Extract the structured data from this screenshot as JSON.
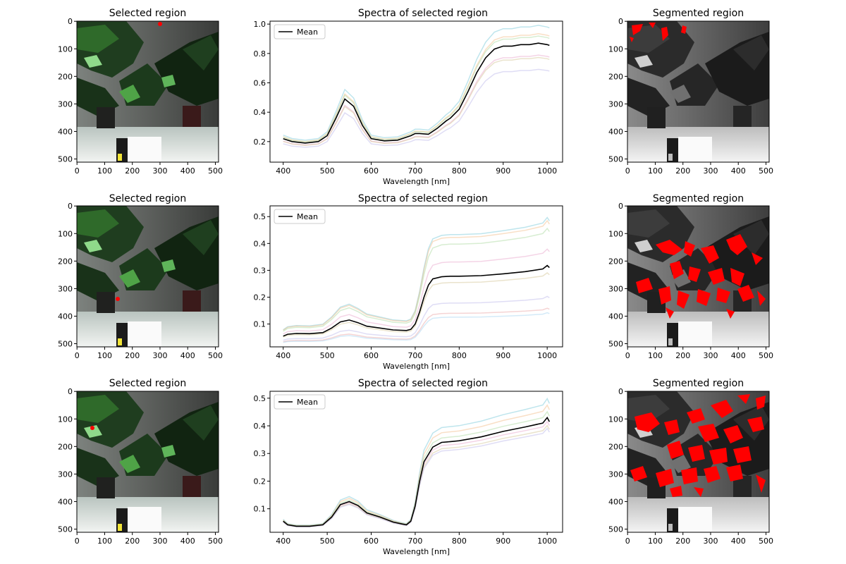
{
  "figure": {
    "image_title": "Selected region",
    "spectra_title": "Spectra of selected region",
    "segmented_title": "Segmented region",
    "xlabel": "Wavelength [nm]",
    "legend_label": "Mean",
    "image_ticks": [
      "0",
      "100",
      "200",
      "300",
      "400",
      "500"
    ]
  },
  "colors": {
    "mean": "#000000",
    "overlay": "#ff0000",
    "marker": "#ff0000",
    "faint_series": [
      "#6fc6d6",
      "#f2b880",
      "#a6d79a",
      "#e6a0c8",
      "#d1c28f",
      "#b7b4e8",
      "#e8a0a0",
      "#a0d0f0",
      "#d9d07a",
      "#c8a8e0"
    ]
  },
  "chart_data": [
    {
      "type": "line",
      "title": "Spectra of selected region",
      "xlabel": "Wavelength [nm]",
      "xlim": [
        370,
        1035
      ],
      "ylim": [
        0.06,
        1.02
      ],
      "xticks": [
        400,
        500,
        600,
        700,
        800,
        900,
        1000
      ],
      "yticks": [
        0.2,
        0.4,
        0.6,
        0.8,
        1.0
      ],
      "ytick_labels": [
        "0.2",
        "0.4",
        "0.6",
        "0.8",
        "1.0"
      ],
      "legend": "upper left",
      "x": [
        400,
        420,
        450,
        480,
        500,
        520,
        540,
        560,
        580,
        600,
        630,
        660,
        690,
        700,
        710,
        730,
        750,
        770,
        780,
        800,
        820,
        840,
        860,
        880,
        900,
        920,
        940,
        960,
        980,
        1000,
        1005
      ],
      "mean": [
        0.22,
        0.2,
        0.19,
        0.2,
        0.24,
        0.36,
        0.49,
        0.44,
        0.31,
        0.22,
        0.205,
        0.21,
        0.24,
        0.255,
        0.255,
        0.25,
        0.29,
        0.34,
        0.36,
        0.42,
        0.54,
        0.67,
        0.77,
        0.83,
        0.85,
        0.85,
        0.86,
        0.86,
        0.87,
        0.86,
        0.855
      ],
      "band_scales": [
        1.13,
        1.08,
        1.02,
        0.95,
        0.9,
        0.86
      ],
      "band_offsets": [
        0.02,
        0.0,
        0.04,
        -0.05,
        -0.02,
        -0.08
      ]
    },
    {
      "type": "line",
      "title": "Spectra of selected region",
      "xlabel": "Wavelength [nm]",
      "xlim": [
        370,
        1035
      ],
      "ylim": [
        0.015,
        0.54
      ],
      "xticks": [
        400,
        500,
        600,
        700,
        800,
        900,
        1000
      ],
      "yticks": [
        0.1,
        0.2,
        0.3,
        0.4,
        0.5
      ],
      "ytick_labels": [
        "0.1",
        "0.2",
        "0.3",
        "0.4",
        "0.5"
      ],
      "legend": "upper left",
      "x": [
        400,
        410,
        430,
        460,
        490,
        510,
        530,
        550,
        570,
        590,
        620,
        650,
        680,
        690,
        700,
        710,
        720,
        730,
        740,
        760,
        780,
        800,
        850,
        900,
        950,
        990,
        1000,
        1005
      ],
      "mean": [
        0.055,
        0.062,
        0.065,
        0.064,
        0.068,
        0.085,
        0.108,
        0.115,
        0.105,
        0.092,
        0.085,
        0.078,
        0.076,
        0.08,
        0.1,
        0.145,
        0.2,
        0.245,
        0.268,
        0.276,
        0.278,
        0.278,
        0.28,
        0.287,
        0.295,
        0.305,
        0.318,
        0.31
      ],
      "band_scales": [
        1.6,
        1.55,
        1.45,
        1.2,
        0.9,
        0.6,
        0.45,
        0.4
      ],
      "band_offsets": [
        -0.01,
        0.0,
        0.005,
        0.002,
        0.01,
        0.02,
        0.025,
        0.02
      ]
    },
    {
      "type": "line",
      "title": "Spectra of selected region",
      "xlabel": "Wavelength [nm]",
      "xlim": [
        370,
        1035
      ],
      "ylim": [
        0.015,
        0.525
      ],
      "xticks": [
        400,
        500,
        600,
        700,
        800,
        900,
        1000
      ],
      "yticks": [
        0.1,
        0.2,
        0.3,
        0.4,
        0.5
      ],
      "ytick_labels": [
        "0.1",
        "0.2",
        "0.3",
        "0.4",
        "0.5"
      ],
      "legend": "upper left",
      "x": [
        400,
        410,
        430,
        460,
        490,
        510,
        530,
        550,
        570,
        590,
        620,
        650,
        670,
        680,
        690,
        700,
        710,
        720,
        740,
        760,
        780,
        800,
        850,
        900,
        950,
        990,
        1000,
        1005
      ],
      "mean": [
        0.055,
        0.042,
        0.037,
        0.037,
        0.042,
        0.07,
        0.115,
        0.126,
        0.112,
        0.085,
        0.07,
        0.052,
        0.045,
        0.042,
        0.055,
        0.11,
        0.2,
        0.27,
        0.323,
        0.34,
        0.343,
        0.346,
        0.36,
        0.38,
        0.396,
        0.41,
        0.43,
        0.415
      ],
      "band_scales": [
        1.15,
        1.1,
        1.05,
        0.97,
        0.94,
        0.9
      ],
      "band_offsets": [
        0.015,
        0.008,
        0.0,
        -0.005,
        -0.01,
        0.005
      ]
    }
  ]
}
